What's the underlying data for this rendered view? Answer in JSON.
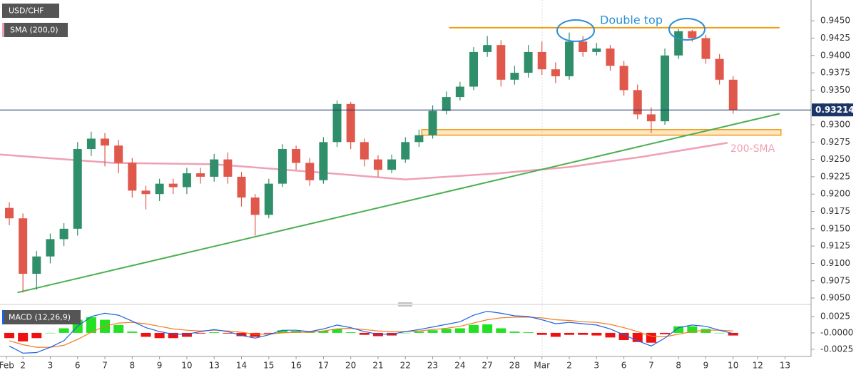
{
  "chart_data": [
    {
      "type": "candlestick",
      "symbol_label": "USD/CHF",
      "indicator_label": "SMA (200,0)",
      "annotation": "Double top",
      "up_color": "#2f8f6a",
      "down_color": "#e0574c",
      "xlim": [
        -0.84,
        28.8
      ],
      "ylim": [
        0.9048,
        0.948
      ],
      "yticks": [
        {
          "value": 0.905,
          "label": "0.9050"
        },
        {
          "value": 0.9075,
          "label": "0.9075"
        },
        {
          "value": 0.91,
          "label": "0.9100"
        },
        {
          "value": 0.9125,
          "label": "0.9125"
        },
        {
          "value": 0.915,
          "label": "0.9150"
        },
        {
          "value": 0.9175,
          "label": "0.9175"
        },
        {
          "value": 0.92,
          "label": "0.9200"
        },
        {
          "value": 0.9225,
          "label": "0.9225"
        },
        {
          "value": 0.925,
          "label": "0.9250"
        },
        {
          "value": 0.9275,
          "label": "0.9275"
        },
        {
          "value": 0.93,
          "label": "0.9300"
        },
        {
          "value": 0.9325,
          "label": "0.9325"
        },
        {
          "value": 0.935,
          "label": "0.9350"
        },
        {
          "value": 0.9375,
          "label": "0.9375"
        },
        {
          "value": 0.94,
          "label": "0.9400"
        },
        {
          "value": 0.9425,
          "label": "0.9425"
        },
        {
          "value": 0.945,
          "label": "0.9450"
        }
      ],
      "x": [
        -0.5,
        0,
        0.5,
        1,
        1.5,
        2,
        2.5,
        3,
        3.5,
        4,
        4.5,
        5,
        5.5,
        6,
        6.5,
        7,
        7.5,
        8,
        8.5,
        9,
        9.5,
        10,
        10.5,
        11,
        11.5,
        12,
        12.5,
        13,
        13.5,
        14,
        14.5,
        15,
        15.5,
        16,
        16.5,
        17,
        17.5,
        18,
        18.5,
        19,
        19.5,
        20,
        20.5,
        21,
        21.5,
        22,
        22.5,
        23,
        23.5,
        24,
        24.5,
        25,
        25.5,
        26
      ],
      "open": [
        0.918,
        0.9165,
        0.9085,
        0.911,
        0.9135,
        0.915,
        0.9265,
        0.928,
        0.927,
        0.9245,
        0.9205,
        0.92,
        0.9215,
        0.921,
        0.923,
        0.9225,
        0.925,
        0.9225,
        0.9195,
        0.917,
        0.9215,
        0.9265,
        0.9245,
        0.922,
        0.9275,
        0.933,
        0.9275,
        0.925,
        0.9235,
        0.925,
        0.9275,
        0.9285,
        0.932,
        0.934,
        0.9355,
        0.9405,
        0.9415,
        0.9365,
        0.9375,
        0.9405,
        0.938,
        0.937,
        0.942,
        0.9405,
        0.941,
        0.9385,
        0.935,
        0.9315,
        0.9305,
        0.94,
        0.9435,
        0.9425,
        0.9395,
        0.9365
      ],
      "high": [
        0.9188,
        0.9172,
        0.9118,
        0.9143,
        0.9158,
        0.9275,
        0.929,
        0.9288,
        0.9278,
        0.9252,
        0.9212,
        0.9222,
        0.9222,
        0.9238,
        0.9238,
        0.9258,
        0.926,
        0.9232,
        0.92,
        0.9222,
        0.9272,
        0.927,
        0.9252,
        0.9282,
        0.9335,
        0.9333,
        0.928,
        0.9256,
        0.9257,
        0.9282,
        0.9293,
        0.9328,
        0.9348,
        0.9362,
        0.9412,
        0.9428,
        0.9422,
        0.9385,
        0.9415,
        0.942,
        0.939,
        0.9433,
        0.9428,
        0.9418,
        0.9415,
        0.9392,
        0.9358,
        0.9325,
        0.941,
        0.9438,
        0.9437,
        0.943,
        0.9402,
        0.937
      ],
      "low": [
        0.9155,
        0.9058,
        0.9062,
        0.91,
        0.9125,
        0.914,
        0.9255,
        0.924,
        0.923,
        0.9195,
        0.9178,
        0.919,
        0.92,
        0.92,
        0.9215,
        0.9218,
        0.9215,
        0.9182,
        0.914,
        0.9165,
        0.921,
        0.9235,
        0.9212,
        0.9215,
        0.9268,
        0.9265,
        0.924,
        0.9225,
        0.923,
        0.9245,
        0.9268,
        0.928,
        0.9315,
        0.9335,
        0.935,
        0.9398,
        0.9355,
        0.9358,
        0.9368,
        0.9372,
        0.936,
        0.9365,
        0.9398,
        0.94,
        0.9378,
        0.9342,
        0.9308,
        0.9288,
        0.93,
        0.9395,
        0.942,
        0.9388,
        0.9358,
        0.9316
      ],
      "close": [
        0.9165,
        0.9085,
        0.911,
        0.9135,
        0.915,
        0.9265,
        0.928,
        0.927,
        0.9245,
        0.9205,
        0.92,
        0.9215,
        0.921,
        0.923,
        0.9225,
        0.925,
        0.9225,
        0.9195,
        0.917,
        0.9215,
        0.9265,
        0.9245,
        0.922,
        0.9275,
        0.933,
        0.9275,
        0.925,
        0.9235,
        0.925,
        0.9275,
        0.9285,
        0.932,
        0.934,
        0.9355,
        0.9405,
        0.9415,
        0.9365,
        0.9375,
        0.9405,
        0.938,
        0.937,
        0.942,
        0.9405,
        0.941,
        0.9385,
        0.935,
        0.9315,
        0.9305,
        0.94,
        0.9435,
        0.9425,
        0.9395,
        0.9365,
        0.9321
      ],
      "sma": {
        "name": "200-SMA",
        "color": "#f0a0b4",
        "x": [
          -0.84,
          3.3,
          7,
          10.6,
          14,
          17.4,
          20,
          22.7,
          25.8
        ],
        "values": [
          0.9257,
          0.9245,
          0.9243,
          0.9232,
          0.9221,
          0.923,
          0.9239,
          0.9254,
          0.9274
        ]
      },
      "last_price": 0.93214,
      "last_price_color": "#1d3566",
      "lines": [
        {
          "color": "#f39c12",
          "x": [
            15.6,
            27.7
          ],
          "values": [
            0.944,
            0.944
          ]
        },
        {
          "color": "#4caf50",
          "x": [
            -0.2,
            27.7
          ],
          "values": [
            0.9058,
            0.9316
          ]
        }
      ],
      "zones": [
        {
          "color": "#f39c12",
          "x": [
            14.6,
            27.75
          ],
          "values": [
            0.9285,
            0.9293
          ]
        }
      ]
    },
    {
      "type": "macd",
      "title": "MACD (12,26,9)",
      "ylim": [
        -0.0036,
        0.0038
      ],
      "yticks": [
        0.0025,
        {
          "value": 0,
          "label": "-0.0000"
        },
        -0.0025
      ],
      "xticks": [
        {
          "value": -0.6,
          "label": "Feb"
        },
        {
          "value": 0,
          "label": "2"
        },
        {
          "value": 1,
          "label": "3"
        },
        {
          "value": 2,
          "label": "6"
        },
        {
          "value": 3,
          "label": "7"
        },
        {
          "value": 4,
          "label": "8"
        },
        {
          "value": 5,
          "label": "9"
        },
        {
          "value": 6,
          "label": "10"
        },
        {
          "value": 7,
          "label": "13"
        },
        {
          "value": 8,
          "label": "14"
        },
        {
          "value": 9,
          "label": "15"
        },
        {
          "value": 10,
          "label": "16"
        },
        {
          "value": 11,
          "label": "17"
        },
        {
          "value": 12,
          "label": "20"
        },
        {
          "value": 13,
          "label": "21"
        },
        {
          "value": 14,
          "label": "22"
        },
        {
          "value": 15,
          "label": "23"
        },
        {
          "value": 16,
          "label": "24"
        },
        {
          "value": 17,
          "label": "27"
        },
        {
          "value": 18,
          "label": "28"
        },
        {
          "value": 19,
          "label": "Mar"
        },
        {
          "value": 20,
          "label": "2"
        },
        {
          "value": 21,
          "label": "3"
        },
        {
          "value": 22,
          "label": "6"
        },
        {
          "value": 23,
          "label": "7"
        },
        {
          "value": 24,
          "label": "8"
        },
        {
          "value": 25,
          "label": "9"
        },
        {
          "value": 26,
          "label": "10"
        },
        {
          "value": 26.9,
          "label": "12"
        },
        {
          "value": 27.9,
          "label": "13"
        }
      ],
      "macd": {
        "color": "#2060e0",
        "values": [
          -0.002,
          -0.0031,
          -0.003,
          -0.0022,
          -0.0012,
          0.001,
          0.0025,
          0.003,
          0.0027,
          0.0018,
          0.0008,
          0.0002,
          -0.0002,
          -0.0002,
          0.0002,
          0.0005,
          0.0002,
          -0.0004,
          -0.0008,
          -0.0003,
          0.0004,
          0.0004,
          0.0002,
          0.0006,
          0.0012,
          0.0008,
          0.0002,
          -0.0002,
          -0.0002,
          0.0002,
          0.0005,
          0.0009,
          0.0013,
          0.0017,
          0.0027,
          0.0033,
          0.003,
          0.0026,
          0.0025,
          0.002,
          0.0014,
          0.0016,
          0.0014,
          0.0012,
          0.0006,
          -0.0003,
          -0.0012,
          -0.002,
          -0.0008,
          0.0008,
          0.0012,
          0.001,
          0.0004,
          -0.0001
        ]
      },
      "signal": {
        "color": "#f07c1e",
        "values": [
          -0.0012,
          -0.0018,
          -0.0022,
          -0.0022,
          -0.0019,
          -0.001,
          0.0001,
          0.001,
          0.0015,
          0.0016,
          0.0014,
          0.001,
          0.0006,
          0.0004,
          0.0003,
          0.0004,
          0.0003,
          0.0001,
          -0.0002,
          -0.0002,
          0,
          0.0001,
          0.0001,
          0.0003,
          0.0006,
          0.0007,
          0.0005,
          0.0003,
          0.0002,
          0.0002,
          0.0003,
          0.0005,
          0.0007,
          0.001,
          0.0015,
          0.002,
          0.0023,
          0.0024,
          0.0024,
          0.0023,
          0.002,
          0.0019,
          0.0017,
          0.0016,
          0.0013,
          0.0008,
          0.0002,
          -0.0005,
          -0.0006,
          -0.0002,
          0.0002,
          0.0004,
          0.0004,
          0.0003
        ]
      },
      "histogram": {
        "up_color": "#22e022",
        "down_color": "#ee1111",
        "values": [
          -0.0008,
          -0.0013,
          -0.0008,
          0,
          0.0007,
          0.002,
          0.0024,
          0.002,
          0.0012,
          0.0002,
          -0.0006,
          -0.0008,
          -0.0008,
          -0.0006,
          -0.0001,
          0.0001,
          -0.0001,
          -0.0005,
          -0.0006,
          -0.0001,
          0.0004,
          0.0003,
          0.0001,
          0.0003,
          0.0006,
          0.0001,
          -0.0003,
          -0.0005,
          -0.0004,
          0,
          0.0002,
          0.0004,
          0.0006,
          0.0007,
          0.0012,
          0.0013,
          0.0007,
          0.0002,
          0.0001,
          -0.0003,
          -0.0006,
          -0.0003,
          -0.0003,
          -0.0004,
          -0.0007,
          -0.0011,
          -0.0014,
          -0.0015,
          -0.0002,
          0.001,
          0.001,
          0.0006,
          0,
          -0.0004
        ]
      }
    }
  ]
}
